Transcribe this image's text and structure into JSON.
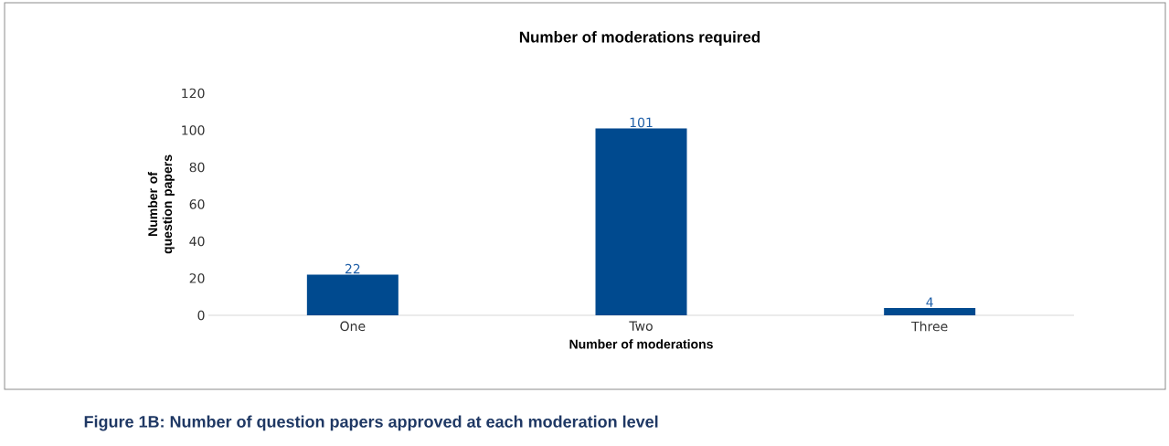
{
  "chart_data": {
    "type": "bar",
    "title": "Number of moderations required",
    "xlabel": "Number of moderations",
    "ylabel": "Number of question papers",
    "categories": [
      "One",
      "Two",
      "Three"
    ],
    "values": [
      22,
      101,
      4
    ],
    "color": "#004a8f",
    "ylim": [
      0,
      120
    ],
    "yticks": [
      0,
      20,
      40,
      60,
      80,
      100,
      120
    ],
    "data_labels": true,
    "annotations": [
      "Figure 1B: Number of question papers approved at each moderation level"
    ]
  }
}
